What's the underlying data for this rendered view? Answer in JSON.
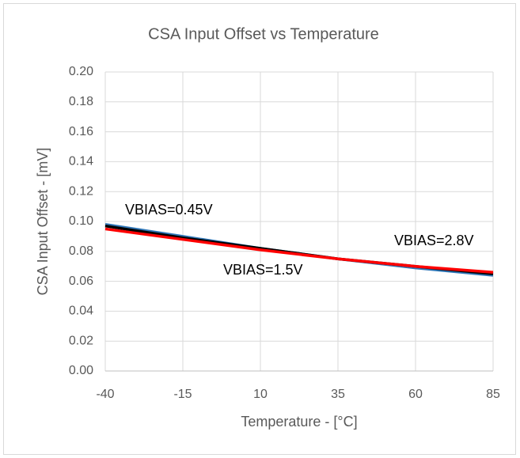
{
  "chart_data": {
    "type": "line",
    "title": "CSA Input Offset vs Temperature",
    "xlabel": "Temperature - [°C]",
    "ylabel": "CSA Input Offset - [mV]",
    "x": [
      -40,
      -15,
      10,
      35,
      60,
      85
    ],
    "series": [
      {
        "name": "VBIAS=0.45V",
        "color": "#2e75b6",
        "values": [
          0.098,
          0.09,
          0.082,
          0.075,
          0.069,
          0.064
        ]
      },
      {
        "name": "VBIAS=1.5V",
        "color": "#000000",
        "values": [
          0.097,
          0.089,
          0.082,
          0.075,
          0.07,
          0.065
        ]
      },
      {
        "name": "VBIAS=2.8V",
        "color": "#ff0000",
        "values": [
          0.095,
          0.088,
          0.081,
          0.075,
          0.07,
          0.066
        ]
      }
    ],
    "xlim": [
      -40,
      85
    ],
    "xticks": [
      -40,
      -15,
      10,
      35,
      60,
      85
    ],
    "ylim": [
      0,
      0.2
    ],
    "yticks": [
      {
        "value": 0,
        "label": "0.00"
      },
      {
        "value": 0.02,
        "label": "0.02"
      },
      {
        "value": 0.04,
        "label": "0.04"
      },
      {
        "value": 0.06,
        "label": "0.06"
      },
      {
        "value": 0.08,
        "label": "0.08"
      },
      {
        "value": 0.1,
        "label": "0.10"
      },
      {
        "value": 0.12,
        "label": "0.12"
      },
      {
        "value": 0.14,
        "label": "0.14"
      },
      {
        "value": 0.16,
        "label": "0.16"
      },
      {
        "value": 0.18,
        "label": "0.18"
      },
      {
        "value": 0.2,
        "label": "0.20"
      }
    ],
    "grid": true
  }
}
